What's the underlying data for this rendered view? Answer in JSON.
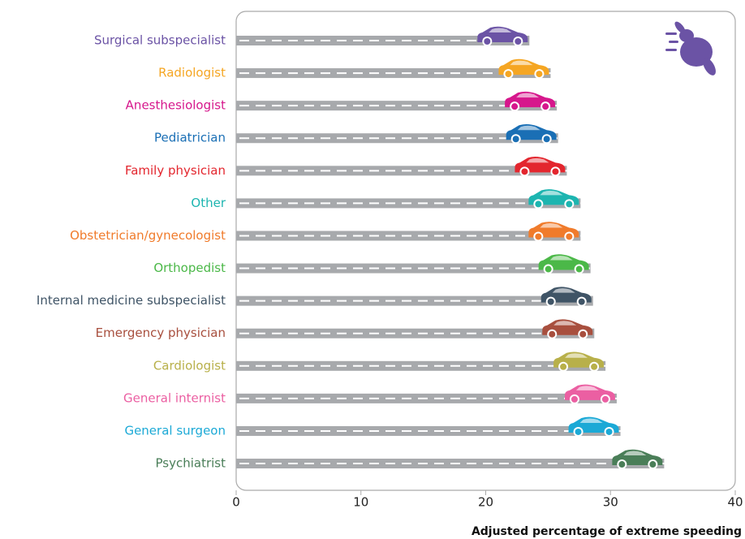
{
  "chart_data": {
    "type": "bar",
    "orientation": "horizontal",
    "x_label": "Adjusted percentage of extreme speeding",
    "categories": [
      "Surgical subspecialist",
      "Radiologist",
      "Anesthesiologist",
      "Pediatrician",
      "Family physician",
      "Other",
      "Obstetrician/gynecologist",
      "Orthopedist",
      "Internal medicine subspecialist",
      "Emergency physician",
      "Cardiologist",
      "General internist",
      "General surgeon",
      "Psychiatrist"
    ],
    "values": [
      23.5,
      25.2,
      25.7,
      25.8,
      26.5,
      27.6,
      27.6,
      28.4,
      28.6,
      28.7,
      29.6,
      30.5,
      30.8,
      34.3
    ],
    "colors": [
      "#6b53a5",
      "#f5a623",
      "#d6178c",
      "#1a6fb5",
      "#e3262e",
      "#1db5b0",
      "#f07b2b",
      "#4bb848",
      "#3f5466",
      "#a84f3e",
      "#b8b04a",
      "#eb5fa2",
      "#1ba9d6",
      "#4a7e58"
    ],
    "xlim": [
      0,
      40
    ],
    "xticks": [
      0,
      10,
      20,
      30,
      40
    ]
  }
}
